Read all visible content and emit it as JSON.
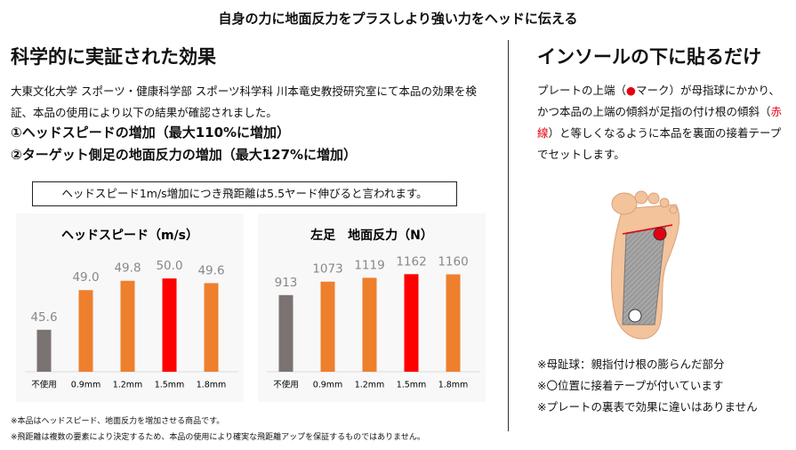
{
  "header": {
    "title": "自身の力に地面反力をプラスしより強い力をヘッドに伝える"
  },
  "left": {
    "heading": "科学的に実証された効果",
    "description": "大東文化大学 スポーツ・健康科学部 スポーツ科学科 川本竜史教授研究室にて本品の効果を検証、本品の使用により以下の結果が確認されました。",
    "results": [
      "①ヘッドスピードの増加（最大110%に増加）",
      "②ターゲット側足の地面反力の増加（最大127%に増加）"
    ],
    "note": "ヘッドスピード1m/s増加につき飛距離は5.5ヤード伸びると言われます。"
  },
  "chart_data": [
    {
      "type": "bar",
      "title": "ヘッドスピード（m/s）",
      "categories": [
        "不使用",
        "0.9mm",
        "1.2mm",
        "1.5mm",
        "1.8mm"
      ],
      "values": [
        45.6,
        49.0,
        49.8,
        50.0,
        49.6
      ],
      "value_labels": [
        "45.6",
        "49.0",
        "49.8",
        "50.0",
        "49.6"
      ],
      "colors": [
        "#7b7372",
        "#ee7f2d",
        "#ee7f2d",
        "#ff0000",
        "#ee7f2d"
      ],
      "ylim": [
        42,
        51
      ]
    },
    {
      "type": "bar",
      "title": "左足　地面反力（N）",
      "categories": [
        "不使用",
        "0.9mm",
        "1.2mm",
        "1.5mm",
        "1.8mm"
      ],
      "values": [
        913,
        1073,
        1119,
        1162,
        1160
      ],
      "colors": [
        "#7b7372",
        "#ee7f2d",
        "#ee7f2d",
        "#ff0000",
        "#ee7f2d"
      ],
      "ylim": [
        0,
        1250
      ]
    }
  ],
  "footnotes": [
    "※本品はヘッドスピード、地面反力を増加させる商品です。",
    "※飛距離は複数の要素により決定するため、本品の使用により確実な飛距離アップを保証するものではありません。"
  ],
  "right": {
    "heading": "インソールの下に貼るだけ",
    "description": [
      {
        "text": "プレートの上端（"
      },
      {
        "text": "●",
        "color": "#e60012"
      },
      {
        "text": "マーク）が母指球にかかり、かつ本品の上端の傾斜が足指の付け根の傾斜（"
      },
      {
        "text": "赤線",
        "color": "#e60012"
      },
      {
        "text": "）と等しくなるように本品を裏面の接着テープでセットします。"
      }
    ],
    "notes": [
      "※母趾球：親指付け根の膨らんだ部分",
      "※〇位置に接着テープが付いています",
      "※プレートの裏表で効果に違いはありません"
    ]
  }
}
